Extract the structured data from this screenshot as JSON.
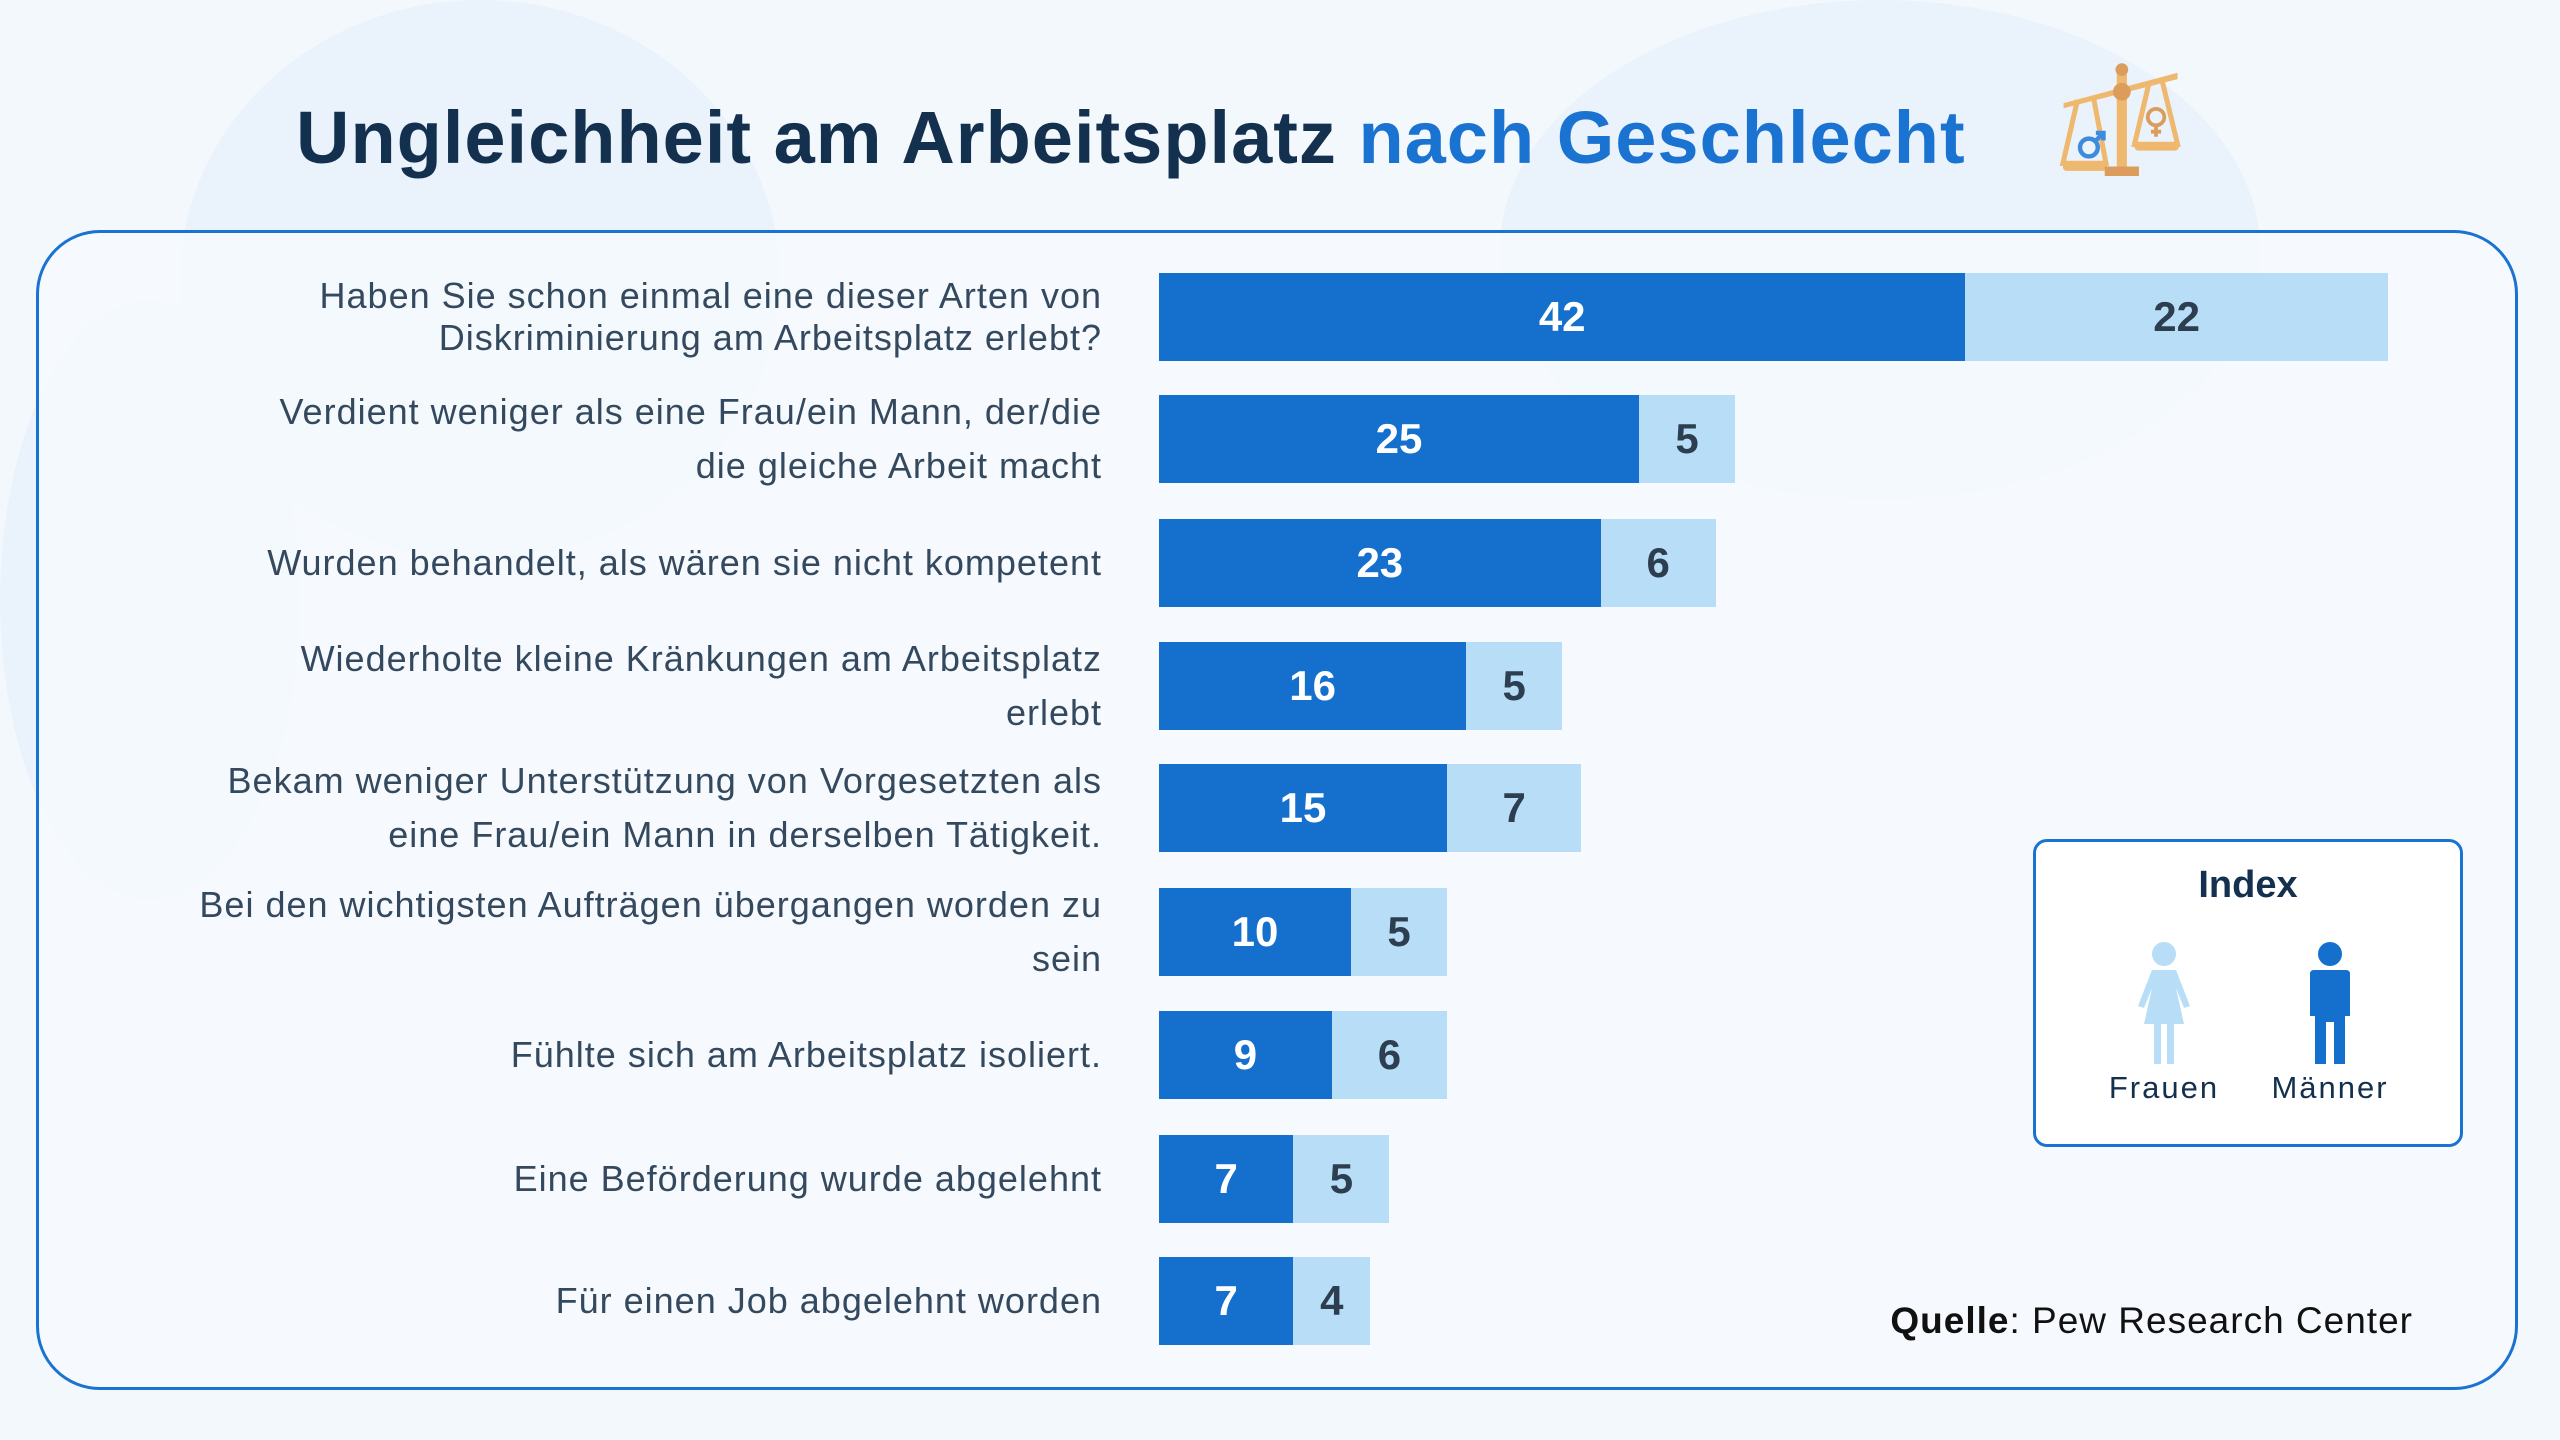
{
  "header": {
    "title_main": "Ungleichheit am Arbeitsplatz",
    "title_accent": "nach Geschlecht",
    "icon": "scales-gender-icon"
  },
  "colors": {
    "dark_bar": "#1470cc",
    "light_bar": "#b8def7",
    "title": "#14304f",
    "accent": "#1a73d1",
    "scale_icon": "#e0a05e"
  },
  "legend": {
    "title": "Index",
    "items": [
      {
        "label": "Frauen",
        "color": "#b8def7",
        "icon": "woman-icon"
      },
      {
        "label": "Männer",
        "color": "#1470cc",
        "icon": "man-icon"
      }
    ]
  },
  "source": {
    "prefix": "Quelle",
    "text": ": Pew Research Center"
  },
  "chart_data": {
    "type": "bar",
    "orientation": "horizontal",
    "stacked": true,
    "categories": [
      "Haben Sie schon einmal eine dieser Arten von\nDiskriminierung am Arbeitsplatz erlebt?",
      "Verdient weniger als eine Frau/ein Mann, der/die\ndie gleiche Arbeit macht",
      "Wurden behandelt, als wären sie nicht kompetent",
      "Wiederholte kleine Kränkungen am Arbeitsplatz\nerlebt",
      "Bekam weniger Unterstützung von Vorgesetzten als\neine Frau/ein Mann in derselben Tätigkeit.",
      "Bei den wichtigsten Aufträgen übergangen worden zu\nsein",
      "Fühlte sich am Arbeitsplatz isoliert.",
      "Eine Beförderung wurde abgelehnt",
      "Für einen Job abgelehnt worden"
    ],
    "series": [
      {
        "color": "#1470cc",
        "values": [
          42,
          25,
          23,
          16,
          15,
          10,
          9,
          7,
          7
        ]
      },
      {
        "color": "#b8def7",
        "values": [
          22,
          5,
          6,
          5,
          7,
          5,
          6,
          5,
          4
        ]
      }
    ],
    "axes_visible": false,
    "grid": false,
    "legend_position": "right"
  }
}
